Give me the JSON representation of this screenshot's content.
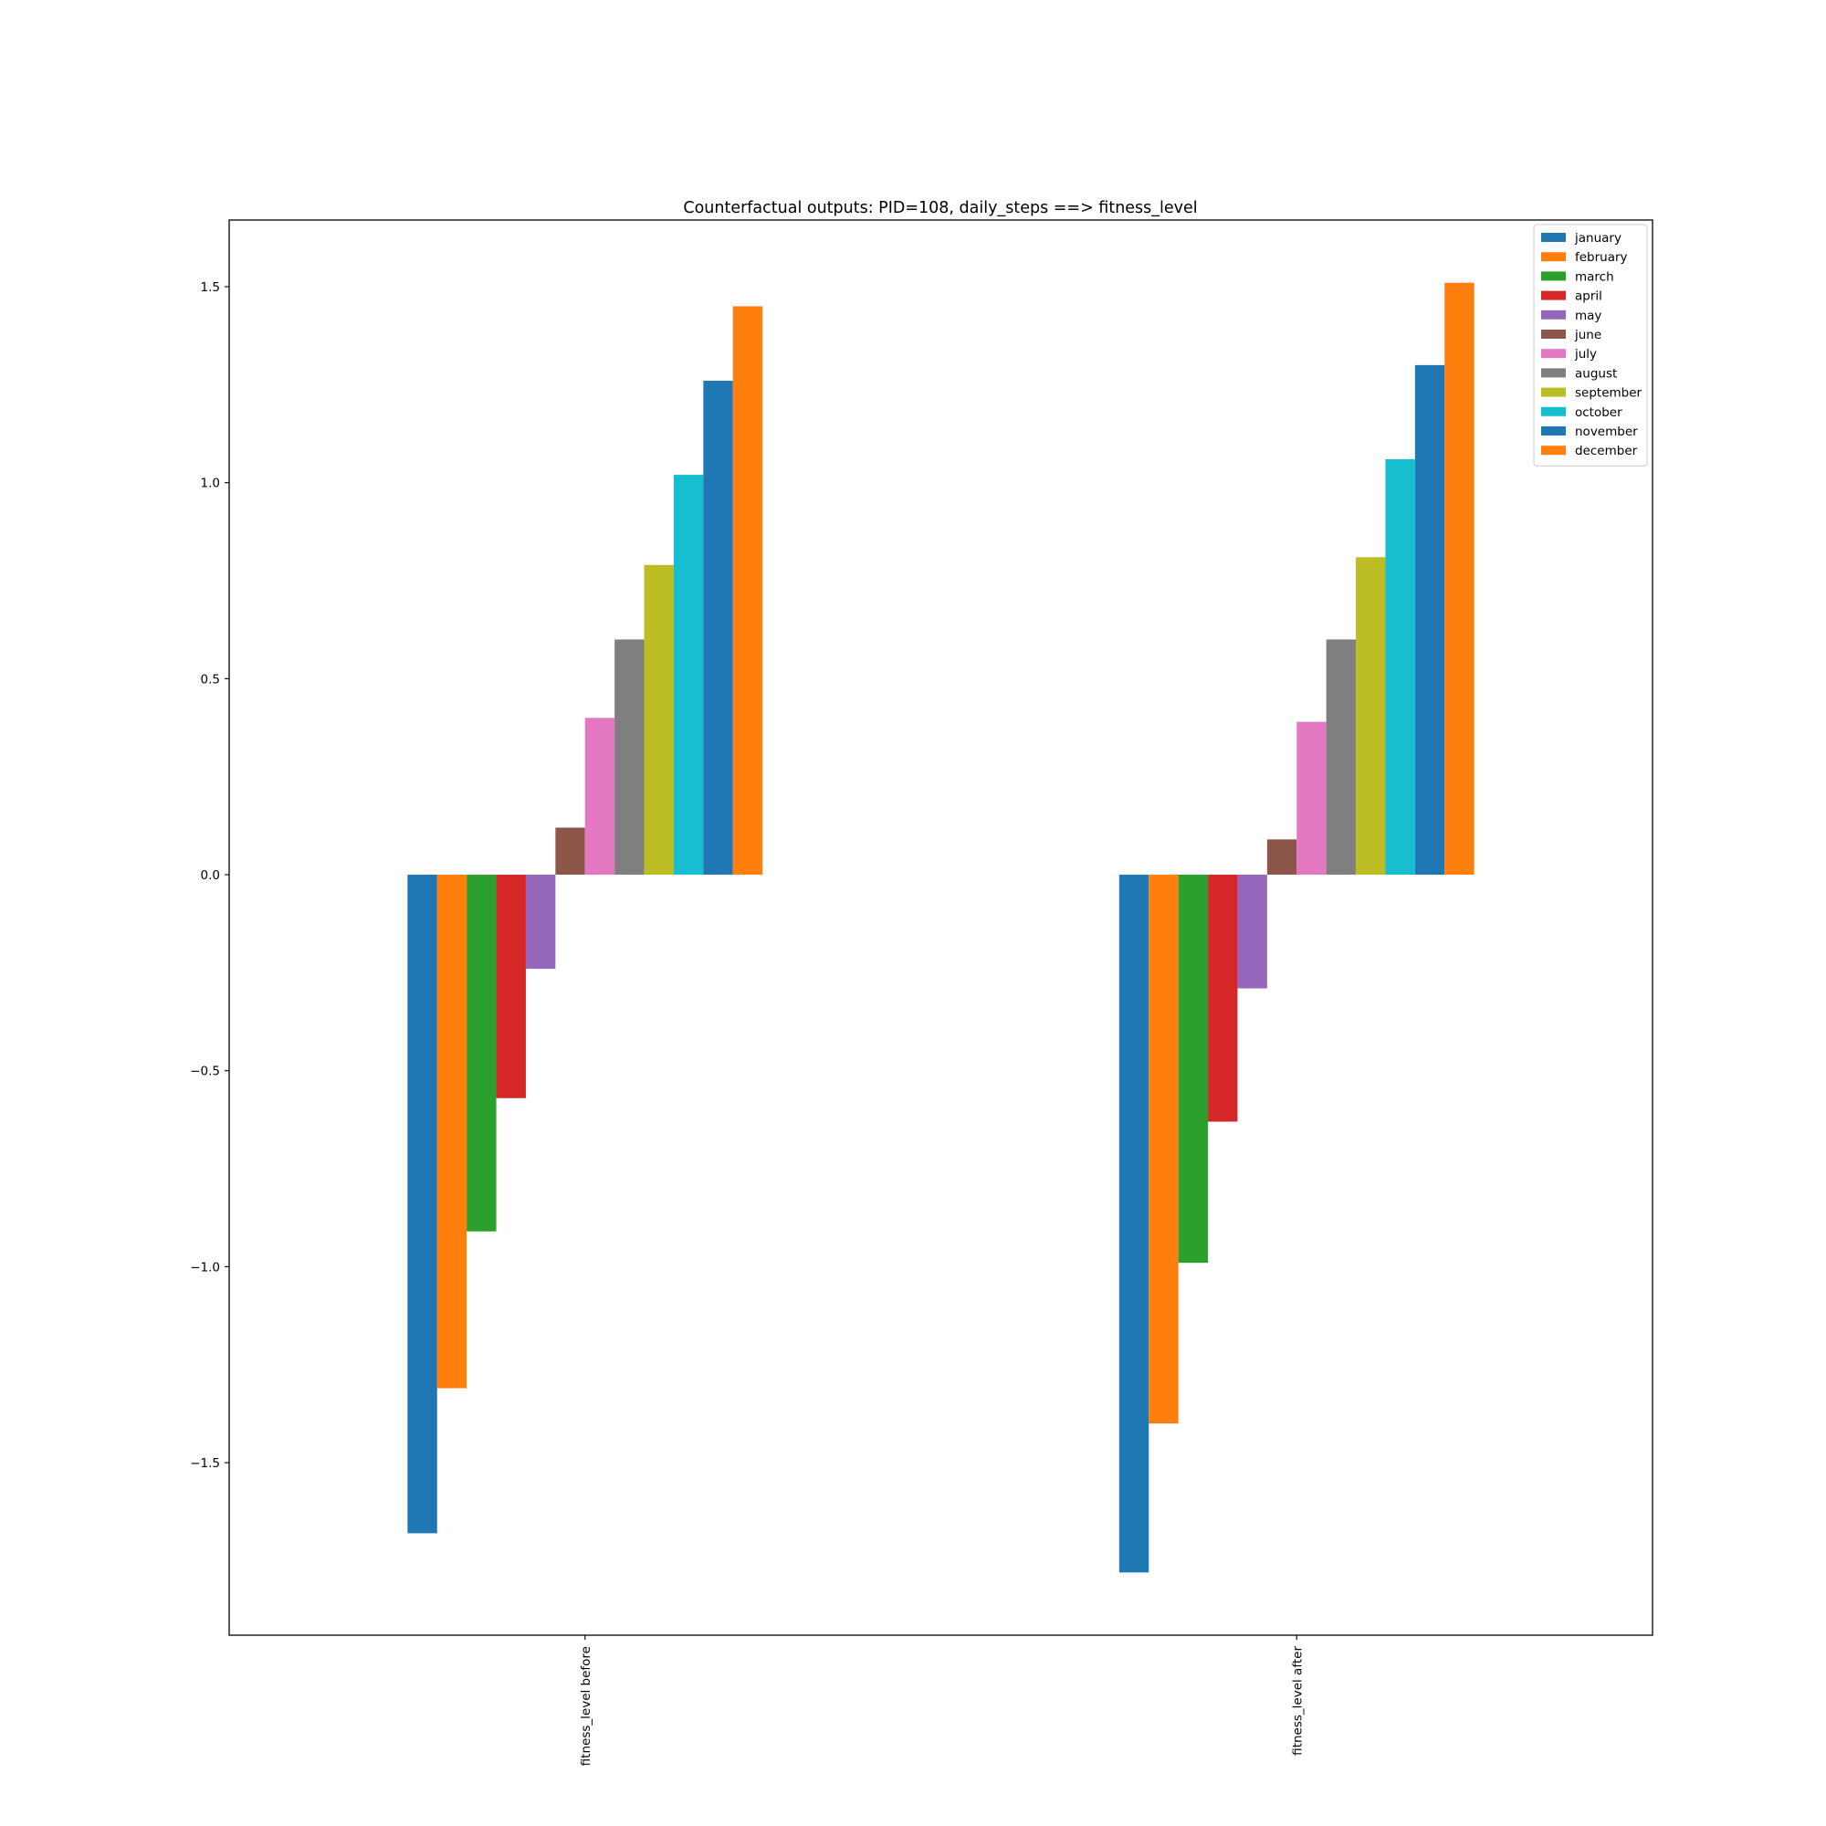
{
  "chart_data": {
    "type": "bar",
    "title": "Counterfactual outputs: PID=108, daily_steps ==> fitness_level",
    "xlabel": "",
    "ylabel": "",
    "categories": [
      "fitness_level before",
      "fitness_level after"
    ],
    "ylim": [
      -1.94,
      1.67
    ],
    "yticks": [
      -1.5,
      -1.0,
      -0.5,
      0.0,
      0.5,
      1.0,
      1.5
    ],
    "ytick_labels": [
      "−1.5",
      "−1.0",
      "−0.5",
      "0.0",
      "0.5",
      "1.0",
      "1.5"
    ],
    "grid": false,
    "legend_position": "top-right",
    "xtick_rotation": "vertical",
    "series": [
      {
        "name": "january",
        "color": "#1f77b4",
        "values": [
          -1.68,
          -1.78
        ]
      },
      {
        "name": "february",
        "color": "#ff7f0e",
        "values": [
          -1.31,
          -1.4
        ]
      },
      {
        "name": "march",
        "color": "#2ca02c",
        "values": [
          -0.91,
          -0.99
        ]
      },
      {
        "name": "april",
        "color": "#d62728",
        "values": [
          -0.57,
          -0.63
        ]
      },
      {
        "name": "may",
        "color": "#9467bd",
        "values": [
          -0.24,
          -0.29
        ]
      },
      {
        "name": "june",
        "color": "#8c564b",
        "values": [
          0.12,
          0.09
        ]
      },
      {
        "name": "july",
        "color": "#e377c2",
        "values": [
          0.4,
          0.39
        ]
      },
      {
        "name": "august",
        "color": "#7f7f7f",
        "values": [
          0.6,
          0.6
        ]
      },
      {
        "name": "september",
        "color": "#bcbd22",
        "values": [
          0.79,
          0.81
        ]
      },
      {
        "name": "october",
        "color": "#17becf",
        "values": [
          1.02,
          1.06
        ]
      },
      {
        "name": "november",
        "color": "#1f77b4",
        "values": [
          1.26,
          1.3
        ]
      },
      {
        "name": "december",
        "color": "#ff7f0e",
        "values": [
          1.45,
          1.51
        ]
      }
    ]
  }
}
